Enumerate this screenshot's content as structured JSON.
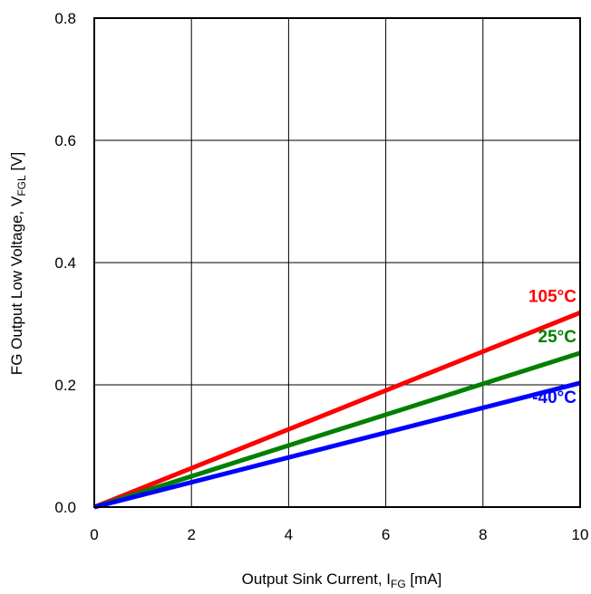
{
  "chart_data": {
    "type": "line",
    "xlabel": {
      "main": "Output Sink Current, I",
      "sub": "FG",
      "unit": " [mA]"
    },
    "ylabel": {
      "main": "FG Output Low Voltage, V",
      "sub": "FGL",
      "unit": " [V]"
    },
    "xlim": [
      0,
      10
    ],
    "ylim": [
      0,
      0.8
    ],
    "xticks": [
      0,
      2,
      4,
      6,
      8,
      10
    ],
    "xtick_labels": [
      "0",
      "2",
      "4",
      "6",
      "8",
      "10"
    ],
    "yticks": [
      0,
      0.2,
      0.4,
      0.6,
      0.8
    ],
    "ytick_labels": [
      "0.0",
      "0.2",
      "0.4",
      "0.6",
      "0.8"
    ],
    "grid": true,
    "series": [
      {
        "name": "105°C",
        "color": "#ff0000",
        "x": [
          0,
          10
        ],
        "y": [
          0,
          0.318
        ]
      },
      {
        "name": "25°C",
        "color": "#008000",
        "x": [
          0,
          10
        ],
        "y": [
          0,
          0.252
        ]
      },
      {
        "name": "-40°C",
        "color": "#0000ff",
        "x": [
          0,
          10
        ],
        "y": [
          0,
          0.203
        ]
      }
    ]
  }
}
